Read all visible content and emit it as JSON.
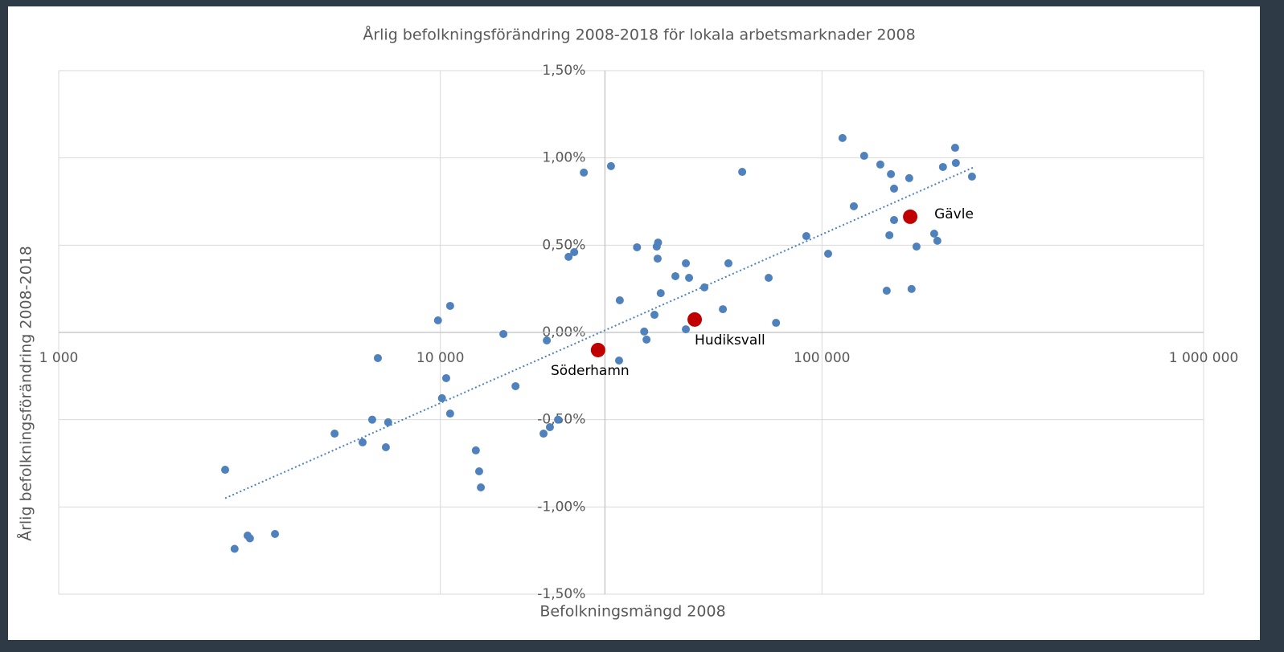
{
  "chart_data": {
    "type": "scatter",
    "title": "Årlig befolkningsförändring 2008-2018 för lokala arbetsmarknader 2008",
    "xlabel": "Befolkningsmängd 2008",
    "ylabel": "Årlig befolkningsförändring 2008-2018",
    "xscale": "log",
    "xlim": [
      1000,
      1000000
    ],
    "xticks": [
      {
        "value": 1000,
        "label": "1 000"
      },
      {
        "value": 10000,
        "label": "10 000"
      },
      {
        "value": 100000,
        "label": "100 000"
      },
      {
        "value": 1000000,
        "label": "1 000 000"
      }
    ],
    "ylim": [
      -1.5,
      1.5
    ],
    "yticks": [
      {
        "value": -1.5,
        "label": "-1,50%"
      },
      {
        "value": -1.0,
        "label": "-1,00%"
      },
      {
        "value": -0.5,
        "label": "-0,50%"
      },
      {
        "value": 0,
        "label": "0,00%"
      },
      {
        "value": 0.5,
        "label": "0,50%"
      },
      {
        "value": 1.0,
        "label": "1,00%"
      },
      {
        "value": 1.5,
        "label": "1,50%"
      }
    ],
    "y_axis_crosses_x": 27000,
    "grid": true,
    "series": [
      {
        "color": "#4f81bd",
        "x": [
          2730,
          2890,
          3126,
          3170,
          3688,
          5284,
          6256,
          6630,
          6860,
          7200,
          7300,
          9860,
          10100,
          10360,
          10610,
          10610,
          12390,
          12640,
          12770,
          14630,
          15740,
          18640,
          19370,
          20340,
          19010,
          21680,
          22430,
          23770,
          28000,
          29530,
          29400,
          32760,
          34220,
          34700,
          36400,
          36900,
          37200,
          37100,
          37800,
          41300,
          43990,
          44850,
          43990,
          49200,
          55000,
          56870,
          61800,
          72500,
          75800,
          91000,
          103800,
          113200,
          121200,
          129000,
          142200,
          147800,
          150200,
          151600,
          154500,
          154500,
          169300,
          171700,
          176900,
          196800,
          200600,
          207500,
          223300,
          224300,
          247200
        ],
        "values": [
          -0.787,
          -1.24,
          -1.164,
          -1.18,
          -1.155,
          -0.58,
          -0.63,
          -0.5,
          -0.147,
          -0.658,
          -0.515,
          0.069,
          -0.377,
          -0.262,
          0.152,
          -0.465,
          -0.676,
          -0.796,
          -0.888,
          -0.009,
          -0.308,
          -0.58,
          -0.543,
          -0.5,
          -0.046,
          0.433,
          0.46,
          0.916,
          0.953,
          0.184,
          -0.161,
          0.488,
          0.005,
          -0.041,
          0.101,
          0.492,
          0.515,
          0.423,
          0.225,
          0.322,
          0.396,
          0.313,
          0.018,
          0.258,
          0.133,
          0.396,
          0.92,
          0.313,
          0.055,
          0.552,
          0.451,
          1.114,
          0.723,
          1.012,
          0.962,
          0.239,
          0.557,
          0.907,
          0.644,
          0.824,
          0.884,
          0.249,
          0.492,
          0.566,
          0.525,
          0.948,
          1.058,
          0.971,
          0.893
        ]
      },
      {
        "color": "#c00000",
        "x": [
          25900,
          46400,
          170300
        ],
        "values": [
          -0.101,
          0.074,
          0.663
        ],
        "labels": [
          "Söderhamn",
          "Hudiksvall",
          "Gävle"
        ]
      }
    ],
    "trendline": {
      "color": "#4f81bd",
      "style": "dotted",
      "x": [
        2730,
        252000
      ],
      "values": [
        -0.95,
        0.95
      ]
    }
  }
}
